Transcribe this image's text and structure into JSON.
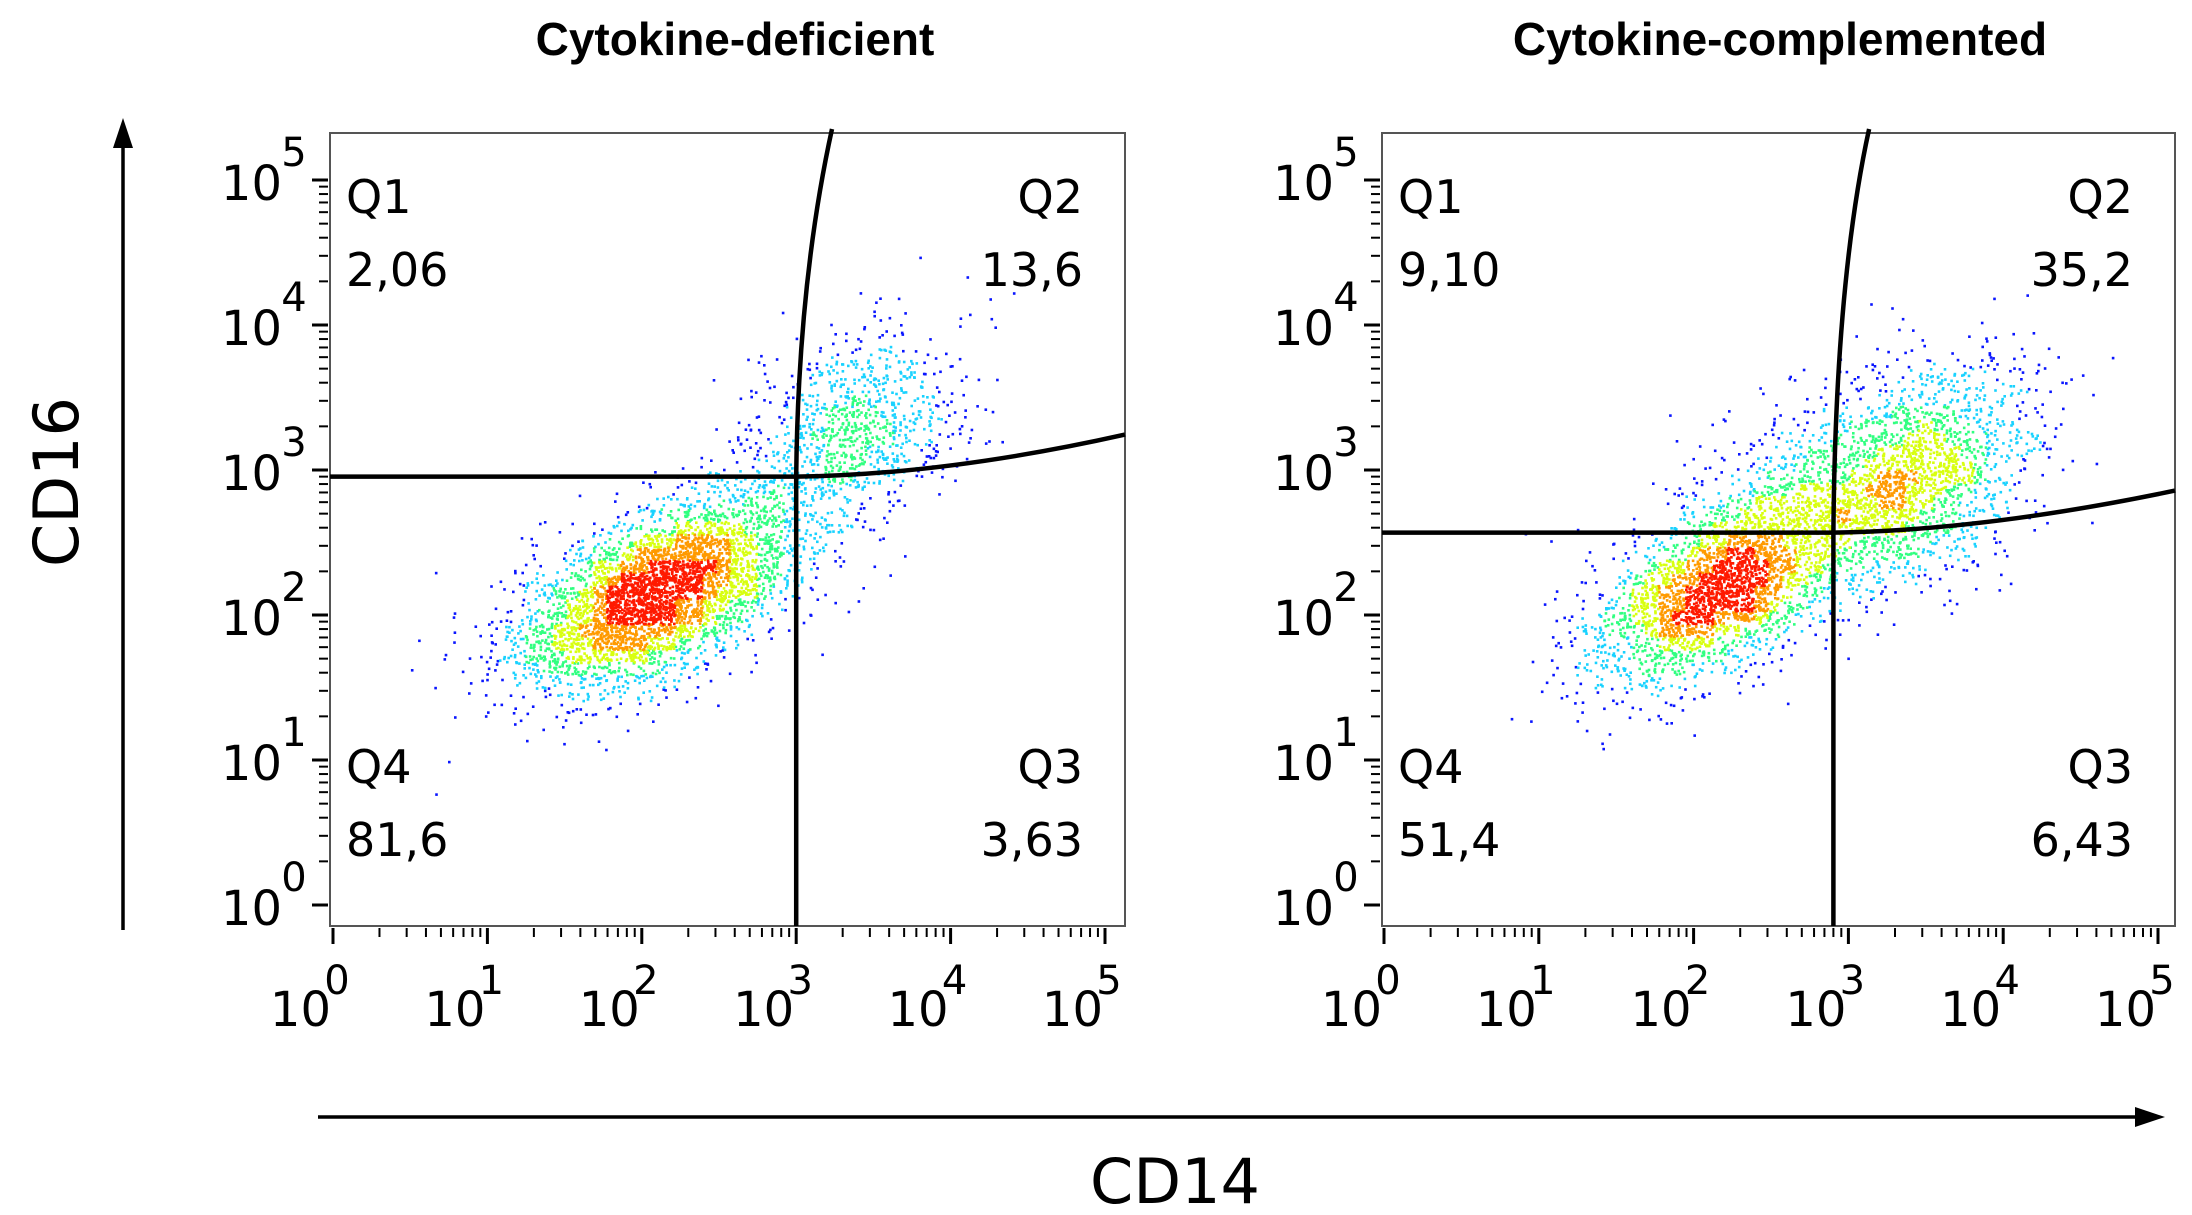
{
  "figure": {
    "x_axis_label": "CD14",
    "y_axis_label": "CD16"
  },
  "chart_data": [
    {
      "type": "scatter",
      "subtype": "flow-cytometry-density-plot",
      "title": "Cytokine-deficient",
      "xlabel": "CD14",
      "ylabel": "CD16",
      "x_scale": "log",
      "y_scale": "log",
      "xlim": [
        1,
        200000
      ],
      "ylim": [
        1,
        300000
      ],
      "x_ticks": [
        {
          "base": "10",
          "exp": "0"
        },
        {
          "base": "10",
          "exp": "1"
        },
        {
          "base": "10",
          "exp": "2"
        },
        {
          "base": "10",
          "exp": "3"
        },
        {
          "base": "10",
          "exp": "4"
        },
        {
          "base": "10",
          "exp": "5"
        }
      ],
      "y_ticks": [
        {
          "base": "10",
          "exp": "0"
        },
        {
          "base": "10",
          "exp": "1"
        },
        {
          "base": "10",
          "exp": "2"
        },
        {
          "base": "10",
          "exp": "3"
        },
        {
          "base": "10",
          "exp": "4"
        },
        {
          "base": "10",
          "exp": "5"
        }
      ],
      "quadrants": [
        {
          "name": "Q1",
          "value": "2,06",
          "position": "top-left"
        },
        {
          "name": "Q2",
          "value": "13,6",
          "position": "top-right"
        },
        {
          "name": "Q3",
          "value": "3,63",
          "position": "bottom-right"
        },
        {
          "name": "Q4",
          "value": "81,6",
          "position": "bottom-left"
        }
      ],
      "gate": {
        "cd14_threshold": 1000,
        "cd16_threshold": 900
      },
      "populations": [
        {
          "center_cd14": 120,
          "center_cd16": 140,
          "spread_log_x": 0.45,
          "spread_log_y": 0.32,
          "correlation": 0.55,
          "weight": 0.78
        },
        {
          "center_cd14": 2500,
          "center_cd16": 2200,
          "spread_log_x": 0.35,
          "spread_log_y": 0.32,
          "correlation": 0.25,
          "weight": 0.15
        },
        {
          "center_cd14": 700,
          "center_cd16": 600,
          "spread_log_x": 0.35,
          "spread_log_y": 0.35,
          "correlation": 0.6,
          "weight": 0.07
        }
      ],
      "density_colors": [
        "#0a16ff",
        "#19d2ff",
        "#30ff80",
        "#d8ff10",
        "#ff9a00",
        "#ff1a00"
      ]
    },
    {
      "type": "scatter",
      "subtype": "flow-cytometry-density-plot",
      "title": "Cytokine-complemented",
      "xlabel": "CD14",
      "ylabel": "CD16",
      "x_scale": "log",
      "y_scale": "log",
      "xlim": [
        1,
        200000
      ],
      "ylim": [
        1,
        300000
      ],
      "x_ticks": [
        {
          "base": "10",
          "exp": "0"
        },
        {
          "base": "10",
          "exp": "1"
        },
        {
          "base": "10",
          "exp": "2"
        },
        {
          "base": "10",
          "exp": "3"
        },
        {
          "base": "10",
          "exp": "4"
        },
        {
          "base": "10",
          "exp": "5"
        }
      ],
      "y_ticks": [
        {
          "base": "10",
          "exp": "0"
        },
        {
          "base": "10",
          "exp": "1"
        },
        {
          "base": "10",
          "exp": "2"
        },
        {
          "base": "10",
          "exp": "3"
        },
        {
          "base": "10",
          "exp": "4"
        },
        {
          "base": "10",
          "exp": "5"
        }
      ],
      "quadrants": [
        {
          "name": "Q1",
          "value": "9,10",
          "position": "top-left"
        },
        {
          "name": "Q2",
          "value": "35,2",
          "position": "top-right"
        },
        {
          "name": "Q3",
          "value": "6,43",
          "position": "bottom-right"
        },
        {
          "name": "Q4",
          "value": "51,4",
          "position": "bottom-left"
        }
      ],
      "gate": {
        "cd14_threshold": 800,
        "cd16_threshold": 370
      },
      "populations": [
        {
          "center_cd14": 150,
          "center_cd16": 160,
          "spread_log_x": 0.42,
          "spread_log_y": 0.33,
          "correlation": 0.55,
          "weight": 0.55
        },
        {
          "center_cd14": 2400,
          "center_cd16": 900,
          "spread_log_x": 0.38,
          "spread_log_y": 0.38,
          "correlation": 0.35,
          "weight": 0.38
        },
        {
          "center_cd14": 400,
          "center_cd16": 700,
          "spread_log_x": 0.4,
          "spread_log_y": 0.35,
          "correlation": 0.4,
          "weight": 0.07
        }
      ],
      "density_colors": [
        "#0a16ff",
        "#19d2ff",
        "#30ff80",
        "#d8ff10",
        "#ff9a00",
        "#ff1a00"
      ]
    }
  ]
}
